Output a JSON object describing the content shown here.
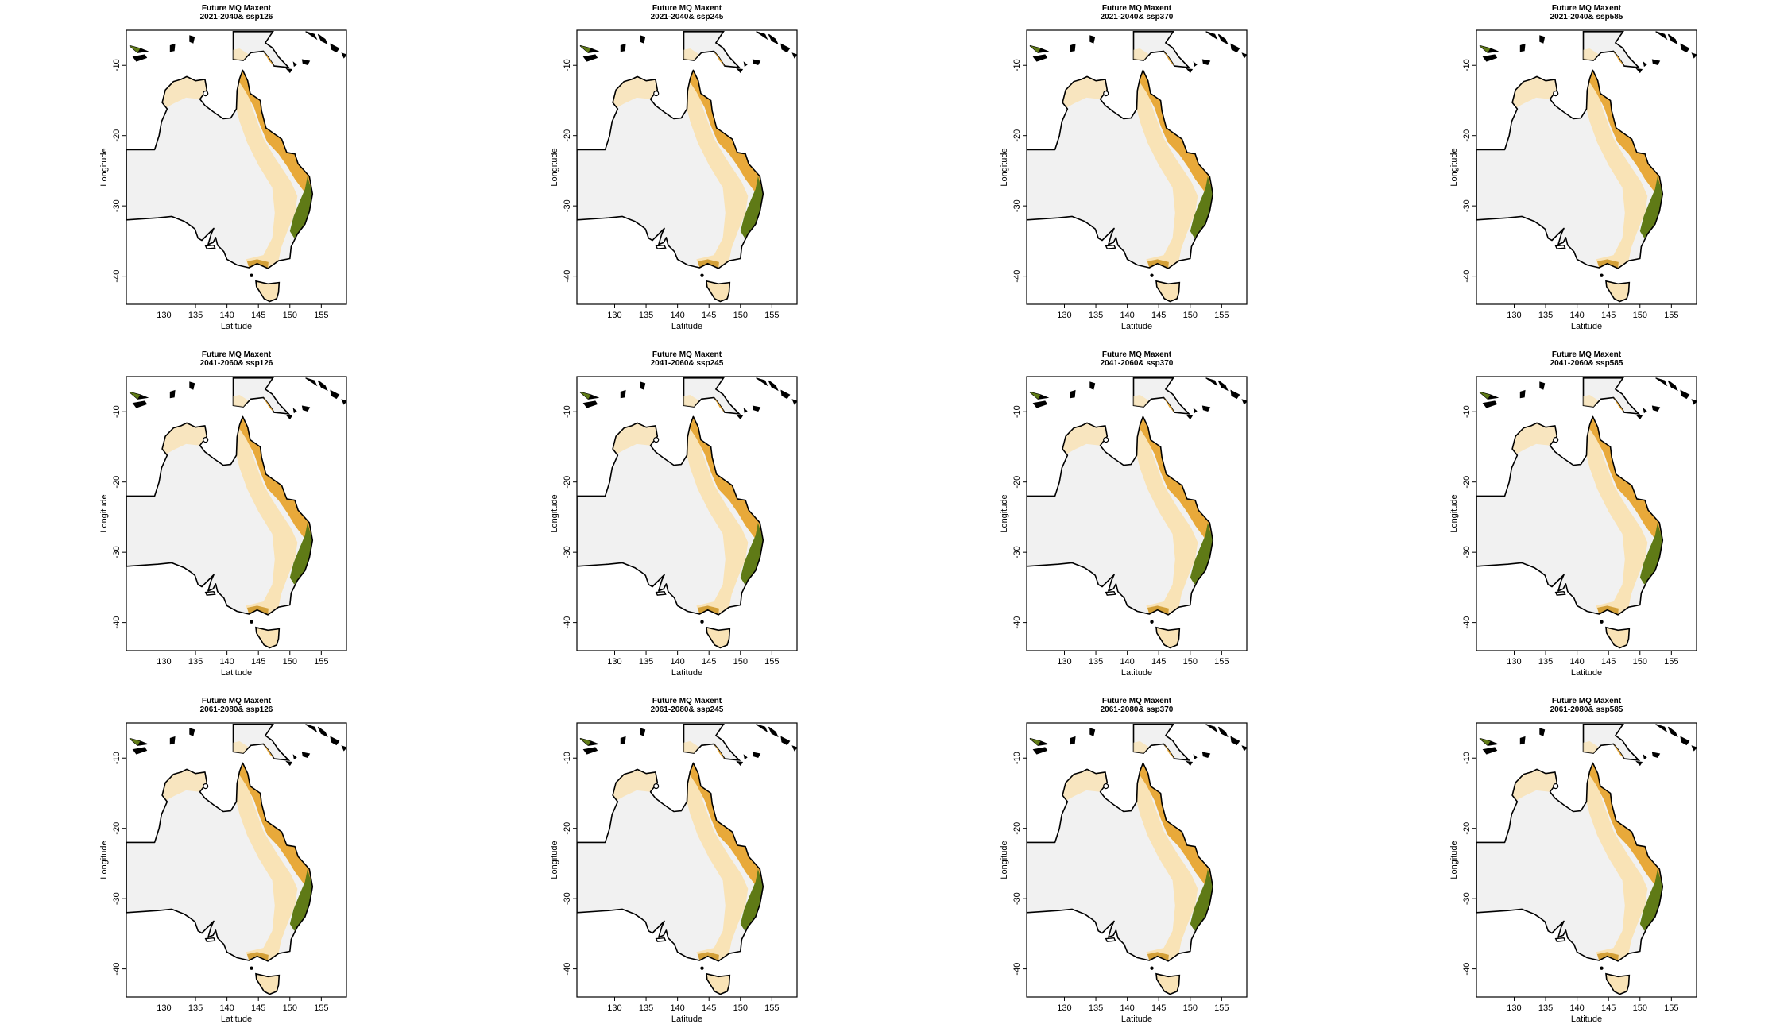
{
  "figure": {
    "panel_title_prefix": "Future MQ Maxent",
    "x_axis_label": "Latitude",
    "y_axis_label": "Longitude",
    "x_ticks": [
      "130",
      "135",
      "140",
      "145",
      "150",
      "155"
    ],
    "y_ticks": [
      "-10",
      "-20",
      "-30",
      "-40"
    ],
    "panels": [
      {
        "subtitle": "2021-2040& ssp126"
      },
      {
        "subtitle": "2021-2040& ssp245"
      },
      {
        "subtitle": "2021-2040& ssp370"
      },
      {
        "subtitle": "2021-2040& ssp585"
      },
      {
        "subtitle": "2041-2060& ssp126"
      },
      {
        "subtitle": "2041-2060& ssp245"
      },
      {
        "subtitle": "2041-2060& ssp370"
      },
      {
        "subtitle": "2041-2060& ssp585"
      },
      {
        "subtitle": "2061-2080& ssp126"
      },
      {
        "subtitle": "2061-2080& ssp245"
      },
      {
        "subtitle": "2061-2080& ssp370"
      },
      {
        "subtitle": "2061-2080& ssp585"
      }
    ],
    "colors": {
      "land": "#f1f1f1",
      "low_suitability": "#f9e3b6",
      "mid_suitability": "#e8a93a",
      "high_suitability": "#c98e1a",
      "top_suitability": "#5f7a16",
      "outline": "#000000"
    }
  }
}
